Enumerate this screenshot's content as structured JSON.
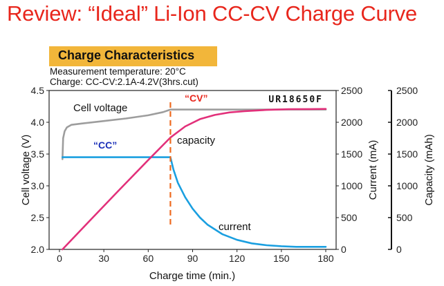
{
  "slide_title": "Review:  “Ideal” Li-Ion CC-CV Charge Curve",
  "badge": "Charge Characteristics",
  "measurement_temperature": "Measurement temperature: 20°C",
  "charge_condition": "Charge: CC-CV:2.1A-4.2V(3hrs.cut)",
  "model": "UR18650F",
  "colors": {
    "title": "#e8261c",
    "badge": "#f2b63a",
    "voltage": "#9d9d9d",
    "capacity": "#e2307a",
    "current": "#1a9fe0",
    "divider": "#ee6a1e",
    "cc_label": "#1a2fb8",
    "cv_label": "#e8261c"
  },
  "chart_data": {
    "type": "line",
    "xlabel": "Charge time (min.)",
    "ylabel_left": "Cell voltage (V)",
    "ylabel_right1": "Current (mA)",
    "ylabel_right2": "Capacity (mAh)",
    "xlim": [
      -7,
      187
    ],
    "ylim_left": [
      2.0,
      4.5
    ],
    "ylim_right": [
      0,
      2500
    ],
    "x_ticks": [
      "0",
      "30",
      "60",
      "90",
      "120",
      "150",
      "180"
    ],
    "y_left_ticks": [
      "2.0",
      "2.5",
      "3.0",
      "3.5",
      "4.0",
      "4.5"
    ],
    "y_right_ticks": [
      "0",
      "500",
      "1000",
      "1500",
      "2000",
      "2500"
    ],
    "cc_cv_transition_min": 75,
    "annotations": {
      "cc": "“CC”",
      "cv": "“CV”",
      "voltage": "Cell voltage",
      "capacity": "capacity",
      "current": "current"
    },
    "series": [
      {
        "name": "Cell voltage",
        "axis": "left",
        "x": [
          2,
          2.5,
          3.5,
          5,
          8,
          15,
          30,
          45,
          60,
          70,
          75,
          80,
          100,
          130,
          160,
          180
        ],
        "y": [
          3.42,
          3.75,
          3.86,
          3.92,
          3.96,
          3.98,
          4.02,
          4.06,
          4.11,
          4.16,
          4.2,
          4.2,
          4.2,
          4.2,
          4.2,
          4.2
        ]
      },
      {
        "name": "current",
        "axis": "right",
        "x": [
          2,
          75,
          77,
          80,
          85,
          90,
          95,
          100,
          110,
          120,
          130,
          140,
          150,
          160,
          180
        ],
        "y": [
          1450,
          1450,
          1260,
          1050,
          820,
          640,
          500,
          390,
          240,
          150,
          95,
          65,
          50,
          40,
          40
        ]
      },
      {
        "name": "capacity",
        "axis": "right",
        "x": [
          2,
          20,
          40,
          60,
          75,
          85,
          95,
          105,
          115,
          125,
          140,
          155,
          170,
          180
        ],
        "y": [
          0,
          440,
          925,
          1405,
          1760,
          1935,
          2050,
          2115,
          2155,
          2175,
          2195,
          2205,
          2208,
          2210
        ]
      }
    ]
  }
}
